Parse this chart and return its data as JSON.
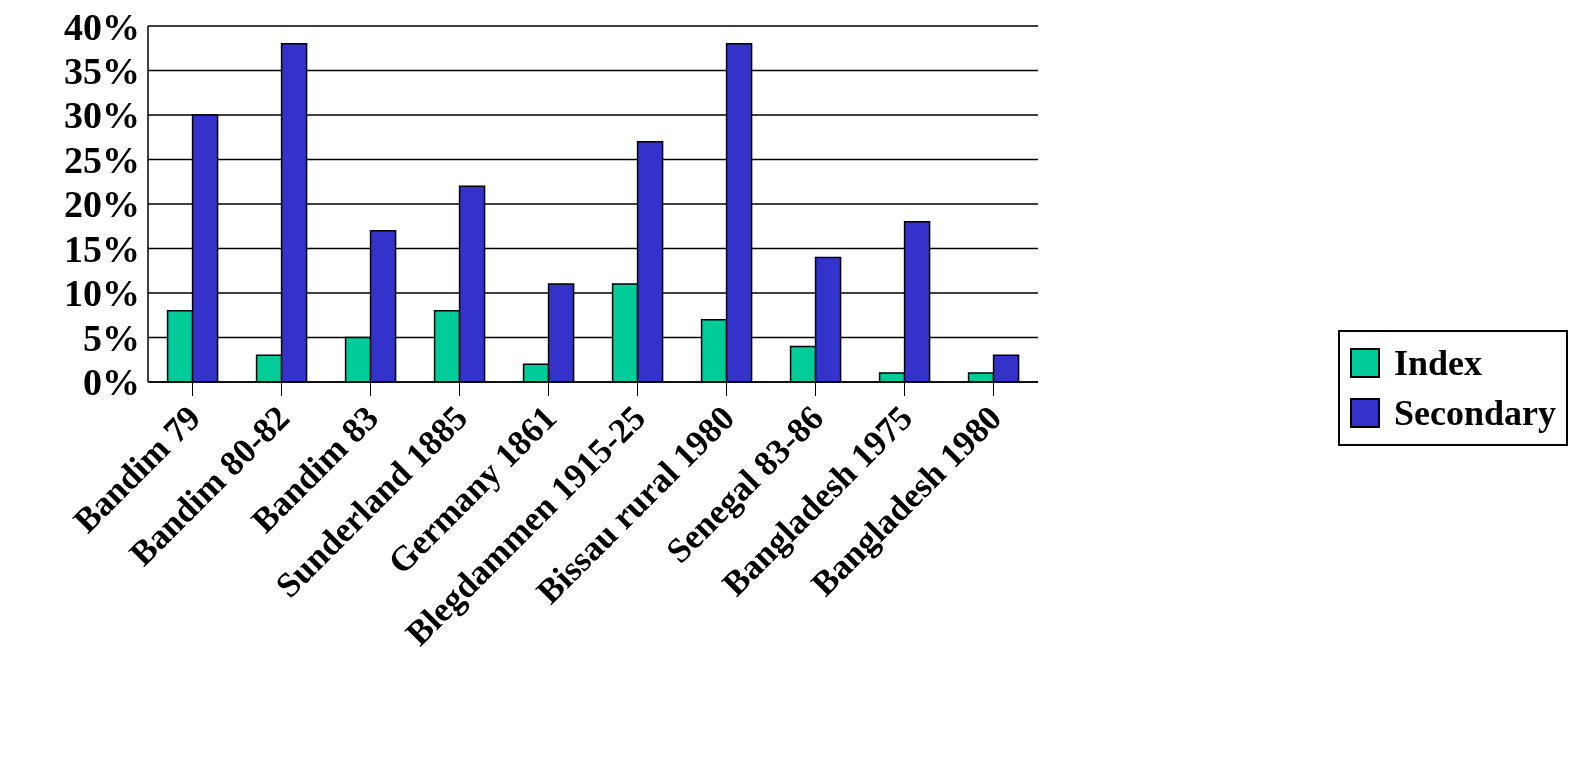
{
  "chart_data": {
    "type": "bar",
    "categories": [
      "Bandim 79",
      "Bandim 80-82",
      "Bandim 83",
      "Sunderland 1885",
      "Germany 1861",
      "Blegdammen 1915-25",
      "Bissau rural 1980",
      "Senegal 83-86",
      "Bangladesh 1975",
      "Bangladesh 1980"
    ],
    "series": [
      {
        "name": "Index",
        "color": "#00cc99",
        "values": [
          8,
          3,
          5,
          8,
          2,
          11,
          7,
          4,
          1,
          1
        ]
      },
      {
        "name": "Secondary",
        "color": "#3333cc",
        "values": [
          30,
          38,
          17,
          22,
          11,
          27,
          38,
          14,
          18,
          3
        ]
      }
    ],
    "ylim": [
      0,
      40
    ],
    "yticks": [
      {
        "value": 0,
        "label": "0%"
      },
      {
        "value": 5,
        "label": "5%"
      },
      {
        "value": 10,
        "label": "10%"
      },
      {
        "value": 15,
        "label": "15%"
      },
      {
        "value": 20,
        "label": "20%"
      },
      {
        "value": 25,
        "label": "25%"
      },
      {
        "value": 30,
        "label": "30%"
      },
      {
        "value": 35,
        "label": "35%"
      },
      {
        "value": 40,
        "label": "40%"
      }
    ],
    "grid": "y",
    "legend": "right"
  }
}
